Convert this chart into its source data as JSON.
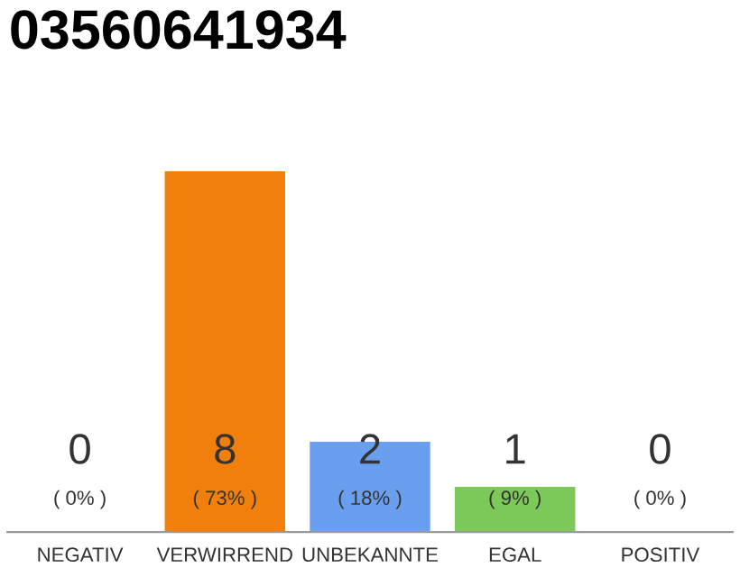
{
  "chart_data": {
    "type": "bar",
    "title": "03560641934",
    "categories": [
      "NEGATIV",
      "VERWIRREND",
      "UNBEKANNTE",
      "EGAL",
      "POSITIV"
    ],
    "values": [
      0,
      8,
      2,
      1,
      0
    ],
    "colors": [
      "#cccccc",
      "#f07f0b",
      "#6a9ff0",
      "#7cc858",
      "#cccccc"
    ],
    "ylim": [
      0,
      8
    ],
    "data_labels": true,
    "grid": false,
    "legend": false,
    "annotations": [
      "( 0% )",
      "( 73% )",
      "( 18% )",
      "( 9% )",
      "( 0% )"
    ]
  }
}
